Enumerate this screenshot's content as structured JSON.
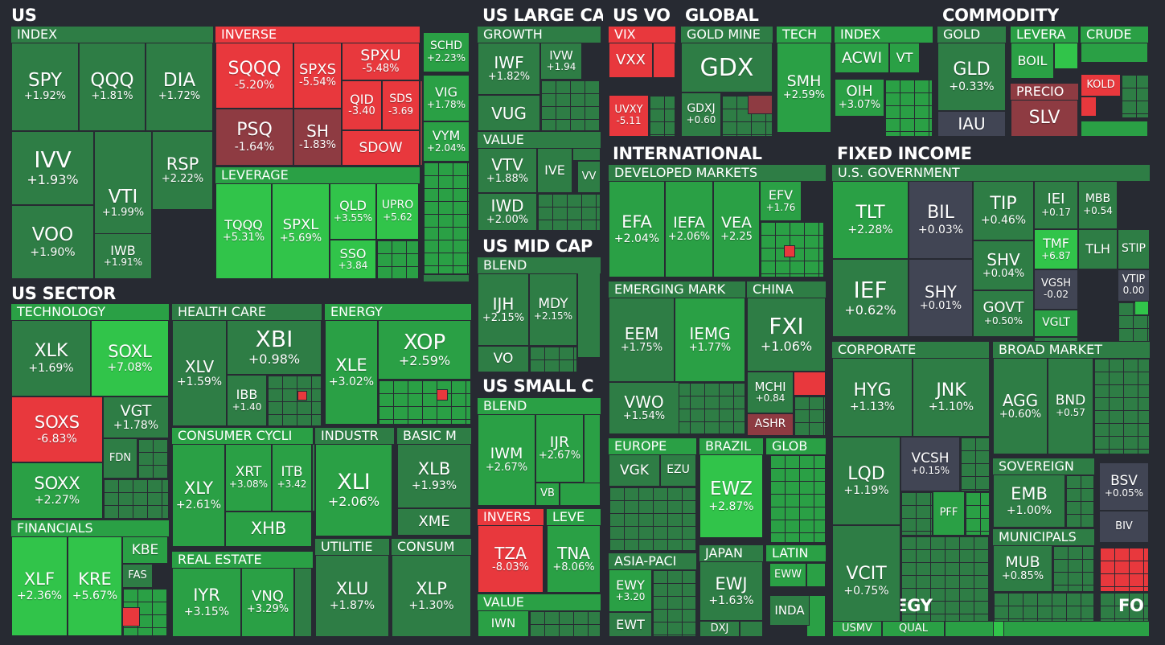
{
  "colors": {
    "background": "#272a32",
    "up_bright": "#31c44a",
    "up_mid": "#2aa045",
    "up_dark": "#2e7d45",
    "neutral": "#414554",
    "down_bright": "#e8383d",
    "down_dark": "#8e3b42"
  },
  "sectors": [
    {
      "name": "US"
    },
    {
      "name": "US SECTOR"
    },
    {
      "name": "US LARGE CA"
    },
    {
      "name": "US VO"
    },
    {
      "name": "US MID CAP"
    },
    {
      "name": "US SMALL C"
    },
    {
      "name": "GLOBAL"
    },
    {
      "name": "COMMODITY"
    },
    {
      "name": "INTERNATIONAL"
    },
    {
      "name": "FIXED INCOME"
    },
    {
      "name": "STRATEGY"
    },
    {
      "name": "FO"
    }
  ],
  "industries": [
    {
      "name": "INDEX"
    },
    {
      "name": "INVERSE"
    },
    {
      "name": "LEVERAGE"
    },
    {
      "name": "TECHNOLOGY"
    },
    {
      "name": "HEALTH CARE"
    },
    {
      "name": "ENERGY"
    },
    {
      "name": "FINANCIALS"
    },
    {
      "name": "CONSUMER CYCLI"
    },
    {
      "name": "INDUSTR"
    },
    {
      "name": "BASIC M"
    },
    {
      "name": "REAL ESTATE"
    },
    {
      "name": "UTILITIE"
    },
    {
      "name": "CONSUM"
    },
    {
      "name": "GROWTH"
    },
    {
      "name": "VALUE"
    },
    {
      "name": "BLEND"
    },
    {
      "name": "BLEND"
    },
    {
      "name": "INVERS"
    },
    {
      "name": "LEVE"
    },
    {
      "name": "VALUE"
    },
    {
      "name": "VIX"
    },
    {
      "name": "GOLD MINE"
    },
    {
      "name": "TECH"
    },
    {
      "name": "INDEX"
    },
    {
      "name": "GOLD"
    },
    {
      "name": "LEVERA"
    },
    {
      "name": "CRUDE"
    },
    {
      "name": "PRECIO"
    },
    {
      "name": "DEVELOPED MARKETS"
    },
    {
      "name": "EMERGING MARK"
    },
    {
      "name": "CHINA"
    },
    {
      "name": "EUROPE"
    },
    {
      "name": "BRAZIL"
    },
    {
      "name": "GLOB"
    },
    {
      "name": "ASIA-PACI"
    },
    {
      "name": "JAPAN"
    },
    {
      "name": "LATIN"
    },
    {
      "name": "U.S. GOVERNMENT"
    },
    {
      "name": "CORPORATE"
    },
    {
      "name": "BROAD MARKET"
    },
    {
      "name": "SOVEREIGN"
    },
    {
      "name": "MUNICIPALS"
    }
  ],
  "tiles": [
    {
      "ticker": "SPY",
      "change": "+1.92%"
    },
    {
      "ticker": "QQQ",
      "change": "+1.81%"
    },
    {
      "ticker": "DIA",
      "change": "+1.72%"
    },
    {
      "ticker": "IVV",
      "change": "+1.93%"
    },
    {
      "ticker": "VTI",
      "change": "+1.99%"
    },
    {
      "ticker": "RSP",
      "change": "+2.22%"
    },
    {
      "ticker": "VOO",
      "change": "+1.90%"
    },
    {
      "ticker": "IWB",
      "change": "+1.91%"
    },
    {
      "ticker": "SQQQ",
      "change": "-5.20%"
    },
    {
      "ticker": "SPXS",
      "change": "-5.54%"
    },
    {
      "ticker": "SPXU",
      "change": "-5.48%"
    },
    {
      "ticker": "QID",
      "change": "-3.40"
    },
    {
      "ticker": "SDS",
      "change": "-3.69"
    },
    {
      "ticker": "PSQ",
      "change": "-1.64%"
    },
    {
      "ticker": "SH",
      "change": "-1.83%"
    },
    {
      "ticker": "SDOW",
      "change": ""
    },
    {
      "ticker": "TQQQ",
      "change": "+5.31%"
    },
    {
      "ticker": "SPXL",
      "change": "+5.69%"
    },
    {
      "ticker": "QLD",
      "change": "+3.55%"
    },
    {
      "ticker": "UPRO",
      "change": "+5.62"
    },
    {
      "ticker": "SSO",
      "change": "+3.84"
    },
    {
      "ticker": "SCHD",
      "change": "+2.23%"
    },
    {
      "ticker": "VIG",
      "change": "+1.78%"
    },
    {
      "ticker": "VYM",
      "change": "+2.04%"
    },
    {
      "ticker": "XLK",
      "change": "+1.69%"
    },
    {
      "ticker": "SOXL",
      "change": "+7.08%"
    },
    {
      "ticker": "SOXS",
      "change": "-6.83%"
    },
    {
      "ticker": "VGT",
      "change": "+1.78%"
    },
    {
      "ticker": "FDN",
      "change": ""
    },
    {
      "ticker": "SOXX",
      "change": "+2.27%"
    },
    {
      "ticker": "XLV",
      "change": "+1.59%"
    },
    {
      "ticker": "XBI",
      "change": "+0.98%"
    },
    {
      "ticker": "IBB",
      "change": "+1.40"
    },
    {
      "ticker": "XLE",
      "change": "+3.02%"
    },
    {
      "ticker": "XOP",
      "change": "+2.59%"
    },
    {
      "ticker": "XLF",
      "change": "+2.36%"
    },
    {
      "ticker": "KRE",
      "change": "+5.67%"
    },
    {
      "ticker": "KBE",
      "change": ""
    },
    {
      "ticker": "FAS",
      "change": ""
    },
    {
      "ticker": "XLY",
      "change": "+2.61%"
    },
    {
      "ticker": "XRT",
      "change": "+3.08%"
    },
    {
      "ticker": "ITB",
      "change": "+3.42"
    },
    {
      "ticker": "XHB",
      "change": ""
    },
    {
      "ticker": "XLI",
      "change": "+2.06%"
    },
    {
      "ticker": "XLB",
      "change": "+1.93%"
    },
    {
      "ticker": "XME",
      "change": ""
    },
    {
      "ticker": "IYR",
      "change": "+3.15%"
    },
    {
      "ticker": "VNQ",
      "change": "+3.29%"
    },
    {
      "ticker": "XLU",
      "change": "+1.87%"
    },
    {
      "ticker": "XLP",
      "change": "+1.30%"
    },
    {
      "ticker": "IWF",
      "change": "+1.82%"
    },
    {
      "ticker": "IVW",
      "change": "+1.94"
    },
    {
      "ticker": "VUG",
      "change": ""
    },
    {
      "ticker": "VTV",
      "change": "+1.88%"
    },
    {
      "ticker": "IVE",
      "change": ""
    },
    {
      "ticker": "IWD",
      "change": "+2.00%"
    },
    {
      "ticker": "VV",
      "change": ""
    },
    {
      "ticker": "IJH",
      "change": "+2.15%"
    },
    {
      "ticker": "MDY",
      "change": "+2.15%"
    },
    {
      "ticker": "VO",
      "change": ""
    },
    {
      "ticker": "IWM",
      "change": "+2.67%"
    },
    {
      "ticker": "IJR",
      "change": "+2.67%"
    },
    {
      "ticker": "VB",
      "change": ""
    },
    {
      "ticker": "TZA",
      "change": "-8.03%"
    },
    {
      "ticker": "TNA",
      "change": "+8.06%"
    },
    {
      "ticker": "IWN",
      "change": ""
    },
    {
      "ticker": "VXX",
      "change": ""
    },
    {
      "ticker": "UVXY",
      "change": "-5.11"
    },
    {
      "ticker": "GDX",
      "change": ""
    },
    {
      "ticker": "GDXJ",
      "change": "+0.60"
    },
    {
      "ticker": "SMH",
      "change": "+2.59%"
    },
    {
      "ticker": "ACWI",
      "change": ""
    },
    {
      "ticker": "VT",
      "change": ""
    },
    {
      "ticker": "OIH",
      "change": "+3.07%"
    },
    {
      "ticker": "GLD",
      "change": "+0.33%"
    },
    {
      "ticker": "IAU",
      "change": ""
    },
    {
      "ticker": "BOIL",
      "change": ""
    },
    {
      "ticker": "KOLD",
      "change": ""
    },
    {
      "ticker": "SLV",
      "change": ""
    },
    {
      "ticker": "EFA",
      "change": "+2.04%"
    },
    {
      "ticker": "IEFA",
      "change": "+2.06%"
    },
    {
      "ticker": "VEA",
      "change": "+2.25"
    },
    {
      "ticker": "EFV",
      "change": "+1.76"
    },
    {
      "ticker": "EEM",
      "change": "+1.75%"
    },
    {
      "ticker": "IEMG",
      "change": "+1.77%"
    },
    {
      "ticker": "VWO",
      "change": "+1.54%"
    },
    {
      "ticker": "FXI",
      "change": "+1.06%"
    },
    {
      "ticker": "MCHI",
      "change": "+0.84"
    },
    {
      "ticker": "ASHR",
      "change": ""
    },
    {
      "ticker": "VGK",
      "change": ""
    },
    {
      "ticker": "EZU",
      "change": ""
    },
    {
      "ticker": "EWZ",
      "change": "+2.87%"
    },
    {
      "ticker": "EWY",
      "change": "+3.20"
    },
    {
      "ticker": "EWT",
      "change": ""
    },
    {
      "ticker": "EWJ",
      "change": "+1.63%"
    },
    {
      "ticker": "DXJ",
      "change": ""
    },
    {
      "ticker": "EWW",
      "change": ""
    },
    {
      "ticker": "INDA",
      "change": ""
    },
    {
      "ticker": "TLT",
      "change": "+2.28%"
    },
    {
      "ticker": "BIL",
      "change": "+0.03%"
    },
    {
      "ticker": "TIP",
      "change": "+0.46%"
    },
    {
      "ticker": "IEI",
      "change": "+0.17"
    },
    {
      "ticker": "MBB",
      "change": "+0.54"
    },
    {
      "ticker": "IEF",
      "change": "+0.62%"
    },
    {
      "ticker": "SHY",
      "change": "+0.01%"
    },
    {
      "ticker": "SHV",
      "change": "+0.04%"
    },
    {
      "ticker": "TMF",
      "change": "+6.87"
    },
    {
      "ticker": "TLH",
      "change": ""
    },
    {
      "ticker": "STIP",
      "change": ""
    },
    {
      "ticker": "VGSH",
      "change": "-0.02"
    },
    {
      "ticker": "VTIP",
      "change": "0.00"
    },
    {
      "ticker": "GOVT",
      "change": "+0.50%"
    },
    {
      "ticker": "VGLT",
      "change": ""
    },
    {
      "ticker": "HYG",
      "change": "+1.13%"
    },
    {
      "ticker": "JNK",
      "change": "+1.10%"
    },
    {
      "ticker": "LQD",
      "change": "+1.19%"
    },
    {
      "ticker": "VCSH",
      "change": "+0.15%"
    },
    {
      "ticker": "PFF",
      "change": ""
    },
    {
      "ticker": "VCIT",
      "change": "+0.75%"
    },
    {
      "ticker": "AGG",
      "change": "+0.60%"
    },
    {
      "ticker": "BND",
      "change": "+0.57"
    },
    {
      "ticker": "EMB",
      "change": "+1.00%"
    },
    {
      "ticker": "MUB",
      "change": "+0.85%"
    },
    {
      "ticker": "BSV",
      "change": "+0.05%"
    },
    {
      "ticker": "BIV",
      "change": ""
    },
    {
      "ticker": "USMV",
      "change": ""
    },
    {
      "ticker": "QUAL",
      "change": ""
    }
  ]
}
